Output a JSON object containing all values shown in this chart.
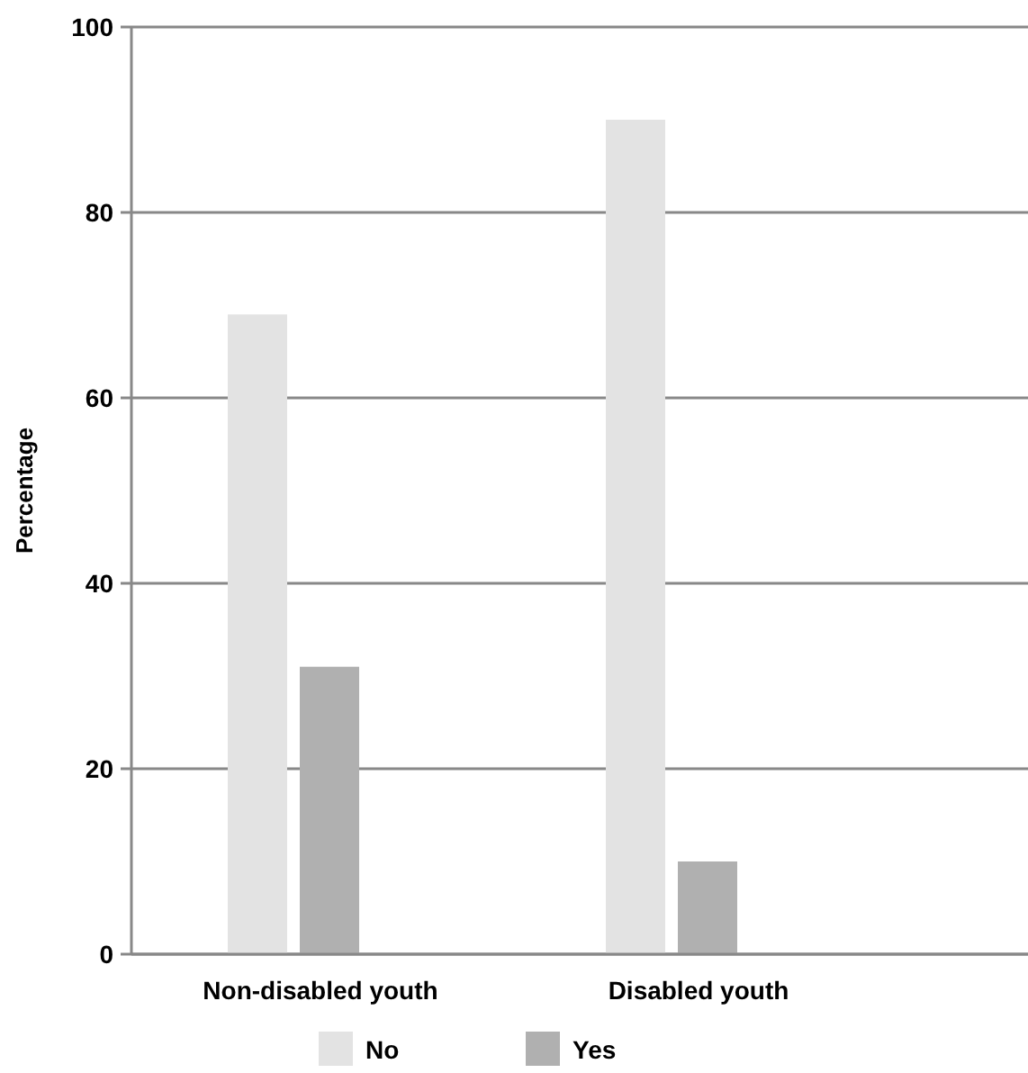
{
  "chart_data": {
    "type": "bar",
    "ylabel": "Percentage",
    "categories": [
      "Non-disabled youth",
      "Disabled youth"
    ],
    "series": [
      {
        "name": "No",
        "color": "#e3e3e3",
        "values": [
          69,
          90
        ]
      },
      {
        "name": "Yes",
        "color": "#b0b0b0",
        "values": [
          31,
          10
        ]
      }
    ],
    "ylim": [
      0,
      100
    ],
    "yticks": [
      0,
      20,
      40,
      60,
      80,
      100
    ],
    "grid": "y",
    "legend": "bottom"
  }
}
